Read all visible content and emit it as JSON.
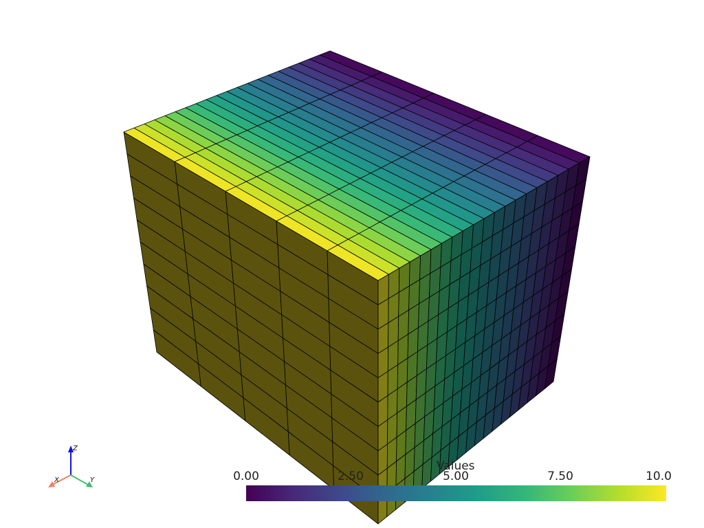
{
  "scalar_bar": {
    "title": "Values",
    "range": [
      0,
      10
    ],
    "colormap": "viridis",
    "colors": [
      "#440154",
      "#482878",
      "#3e4989",
      "#31688e",
      "#26828e",
      "#1f9e89",
      "#35b779",
      "#6ece58",
      "#b5de2b",
      "#fde725"
    ],
    "ticks": [
      "0.00",
      "2.50",
      "5.00",
      "7.50",
      "10.0"
    ]
  },
  "mesh": {
    "cells_long": 20,
    "cells_short": 5,
    "cells_vertical": 10,
    "edge_color": "#000000"
  },
  "axes_widget": {
    "x": "X",
    "y": "Y",
    "z": "Z",
    "x_color": "#f08060",
    "y_color": "#40c070",
    "z_color": "#1010e0"
  }
}
